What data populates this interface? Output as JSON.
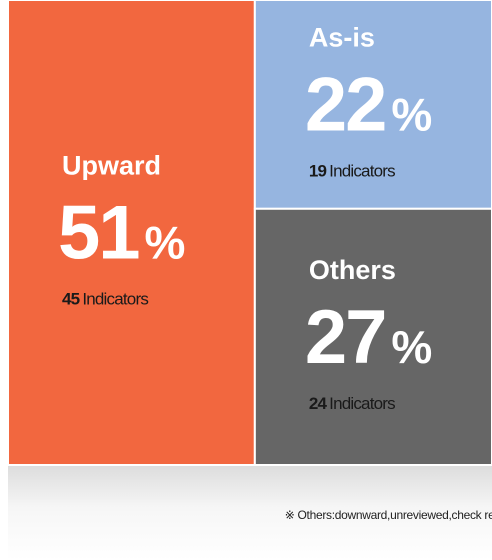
{
  "chart_data": {
    "type": "treemap",
    "categories": [
      "Upward",
      "As-is",
      "Others"
    ],
    "values": [
      51,
      22,
      27
    ],
    "value_unit": "%",
    "counts": [
      45,
      19,
      24
    ],
    "count_unit": "Indicators",
    "colors": [
      "#f2673f",
      "#96b5e0",
      "#666666"
    ],
    "footnote": "※ Others:downward,unreviewed,check required"
  }
}
